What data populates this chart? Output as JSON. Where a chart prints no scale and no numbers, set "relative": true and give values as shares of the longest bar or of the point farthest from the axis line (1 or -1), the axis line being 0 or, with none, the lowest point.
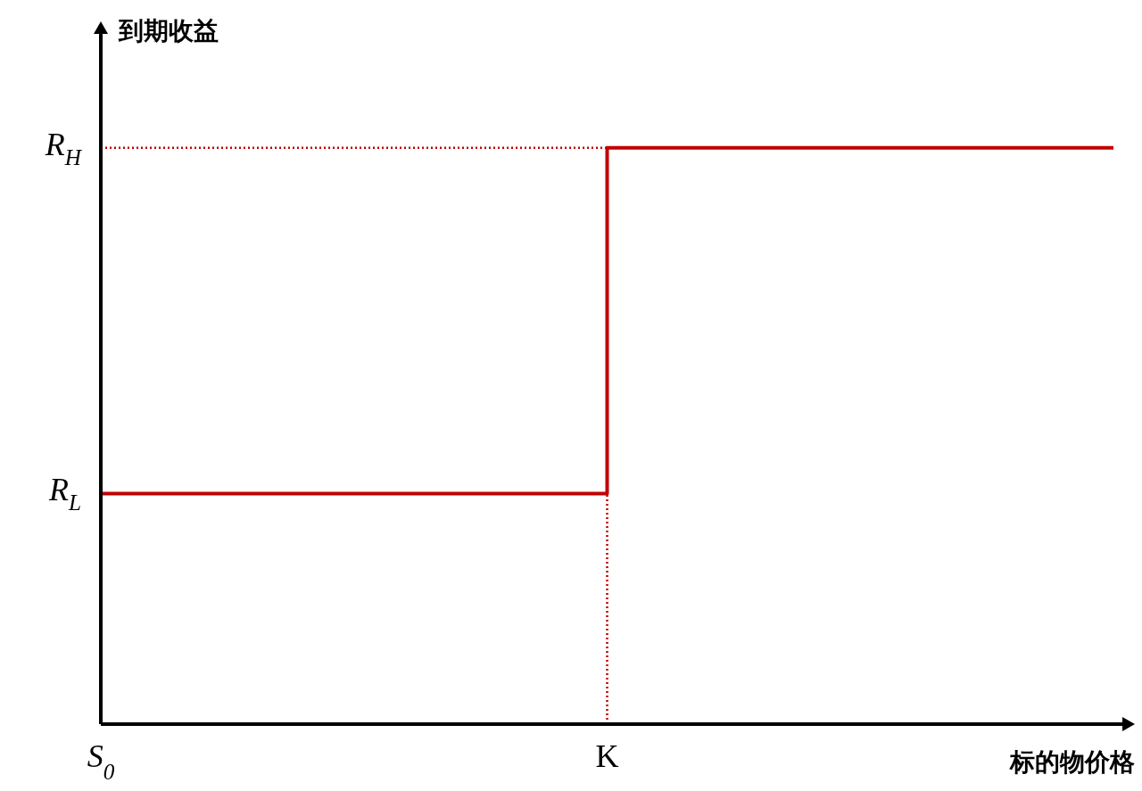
{
  "chart_data": {
    "type": "step",
    "xlabel": "标的物价格",
    "ylabel": "到期收益",
    "relative": true,
    "categories": [
      "S$_{0}$",
      "K",
      null
    ],
    "series": [
      {
        "color": "#c00000",
        "values": [
          0.4,
          1,
          1
        ]
      }
    ],
    "ref_lines": [
      {
        "axis": "y",
        "value": 1,
        "label": "R$_{H}$",
        "color": "#c00000",
        "line_style": "dotted"
      },
      {
        "axis": "x",
        "value": "K",
        "color": "#c00000",
        "line_style": "dotted"
      }
    ],
    "annotations": [
      {
        "text": "R$_{L}$",
        "x": "S$_{0}$",
        "y": 0.4
      }
    ],
    "grid": false
  }
}
